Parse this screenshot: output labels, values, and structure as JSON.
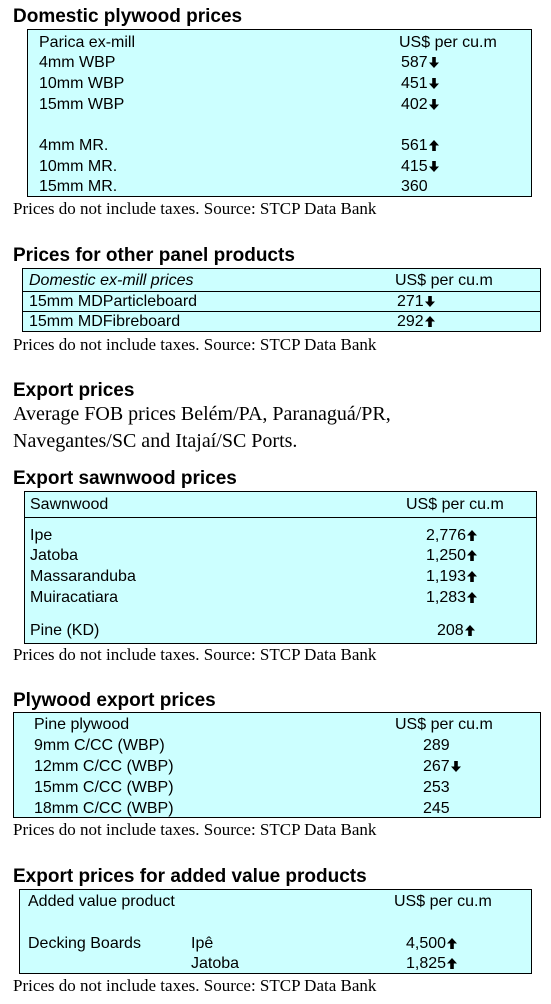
{
  "source_note": "Prices do not include taxes. Source: STCP Data Bank",
  "domestic_plywood": {
    "title": "Domestic plywood prices",
    "header_label": "Parica ex-mill",
    "header_unit": "US$ per cu.m",
    "rows": [
      {
        "label": "4mm WBP",
        "value": "587",
        "trend": "down"
      },
      {
        "label": "10mm WBP",
        "value": "451",
        "trend": "down"
      },
      {
        "label": "15mm WBP",
        "value": "402",
        "trend": "down"
      },
      {
        "label": "4mm MR.",
        "value": "561",
        "trend": "up"
      },
      {
        "label": "10mm MR.",
        "value": "415",
        "trend": "down"
      },
      {
        "label": "15mm MR.",
        "value": "360",
        "trend": "none"
      }
    ]
  },
  "other_panels": {
    "title": "Prices for other panel products",
    "header_label": "Domestic ex-mill prices",
    "header_unit": "US$ per cu.m",
    "rows": [
      {
        "label": "15mm  MDParticleboard",
        "value": "271",
        "trend": "down"
      },
      {
        "label": "15mm  MDFibreboard",
        "value": "292",
        "trend": "up"
      }
    ]
  },
  "export_prices": {
    "title": "Export prices",
    "line1": "Average FOB prices Belém/PA, Paranaguá/PR,",
    "line2": "Navegantes/SC and Itajaí/SC Ports."
  },
  "export_sawnwood": {
    "title": "Export sawnwood prices",
    "header_label": "Sawnwood",
    "header_unit": "US$ per cu.m",
    "rows": [
      {
        "label": "Ipe",
        "value": "2,776",
        "trend": "up"
      },
      {
        "label": "Jatoba",
        "value": "1,250",
        "trend": "up"
      },
      {
        "label": "Massaranduba",
        "value": "1,193",
        "trend": "up"
      },
      {
        "label": "Muiracatiara",
        "value": "1,283",
        "trend": "up"
      },
      {
        "label": "Pine (KD)",
        "value": "208",
        "trend": "up"
      }
    ]
  },
  "plywood_export": {
    "title": "Plywood export prices",
    "header_label": "Pine plywood",
    "header_unit": "US$ per cu.m",
    "rows": [
      {
        "label": "9mm C/CC (WBP)",
        "value": "289",
        "trend": "none"
      },
      {
        "label": "12mm C/CC (WBP)",
        "value": "267",
        "trend": "down"
      },
      {
        "label": "15mm C/CC (WBP)",
        "value": "253",
        "trend": "none"
      },
      {
        "label": "18mm C/CC (WBP)",
        "value": "245",
        "trend": "none"
      }
    ]
  },
  "added_value": {
    "title": "Export prices for added value products",
    "header_label": "Added value product",
    "header_unit": "US$ per cu.m",
    "group_label": "Decking Boards",
    "rows": [
      {
        "label": "Ipê",
        "value": "4,500",
        "trend": "up"
      },
      {
        "label": "Jatoba",
        "value": "1,825",
        "trend": "up"
      }
    ]
  }
}
